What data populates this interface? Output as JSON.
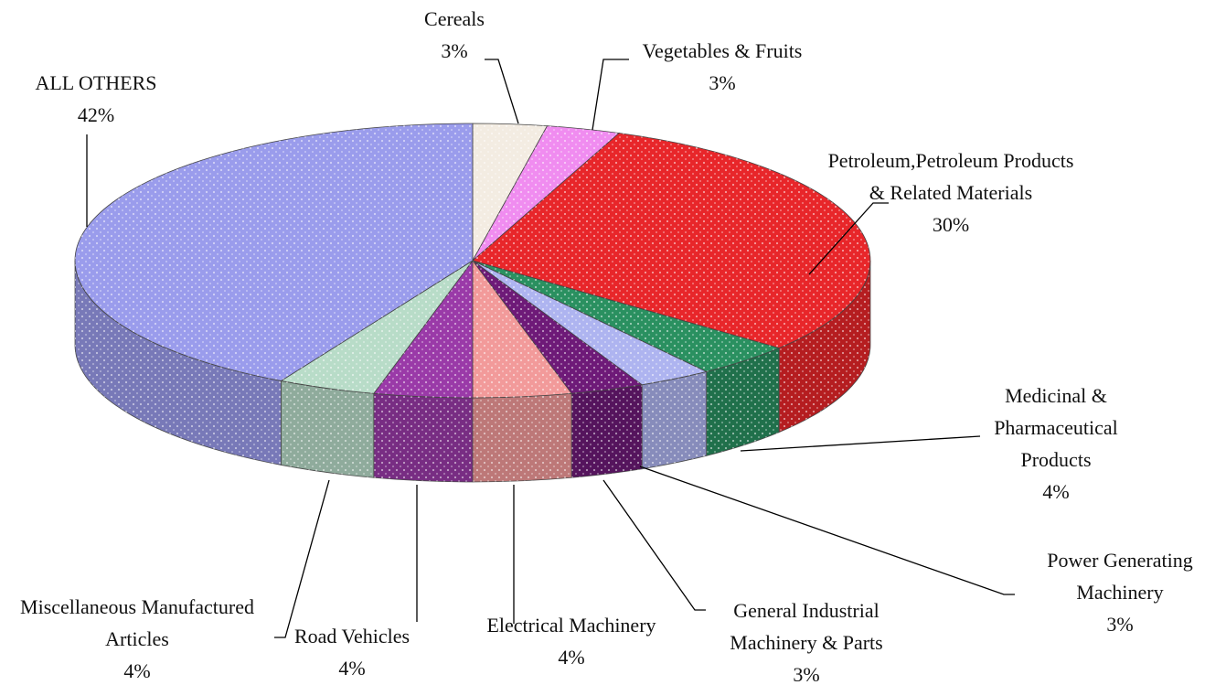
{
  "chart_data": {
    "type": "pie",
    "categories": [
      "Cereals",
      "Vegetables & Fruits",
      "Petroleum,Petroleum Products & Related Materials",
      "Medicinal & Pharmaceutical Products",
      "Power Generating Machinery",
      "General Industrial Machinery & Parts",
      "Electrical Machinery",
      "Road Vehicles",
      "Miscellaneous Manufactured Articles",
      "ALL OTHERS"
    ],
    "values": [
      3,
      3,
      30,
      4,
      3,
      3,
      4,
      4,
      4,
      42
    ],
    "value_labels": [
      "3%",
      "3%",
      "30%",
      "4%",
      "3%",
      "3%",
      "4%",
      "4%",
      "4%",
      "42%"
    ],
    "colors": [
      "#f3ece2",
      "#f08cf0",
      "#e8262a",
      "#2a9060",
      "#aeb4f0",
      "#6e1a78",
      "#f29a9a",
      "#9a3aa8",
      "#b8dcc8",
      "#9a9cec"
    ]
  }
}
